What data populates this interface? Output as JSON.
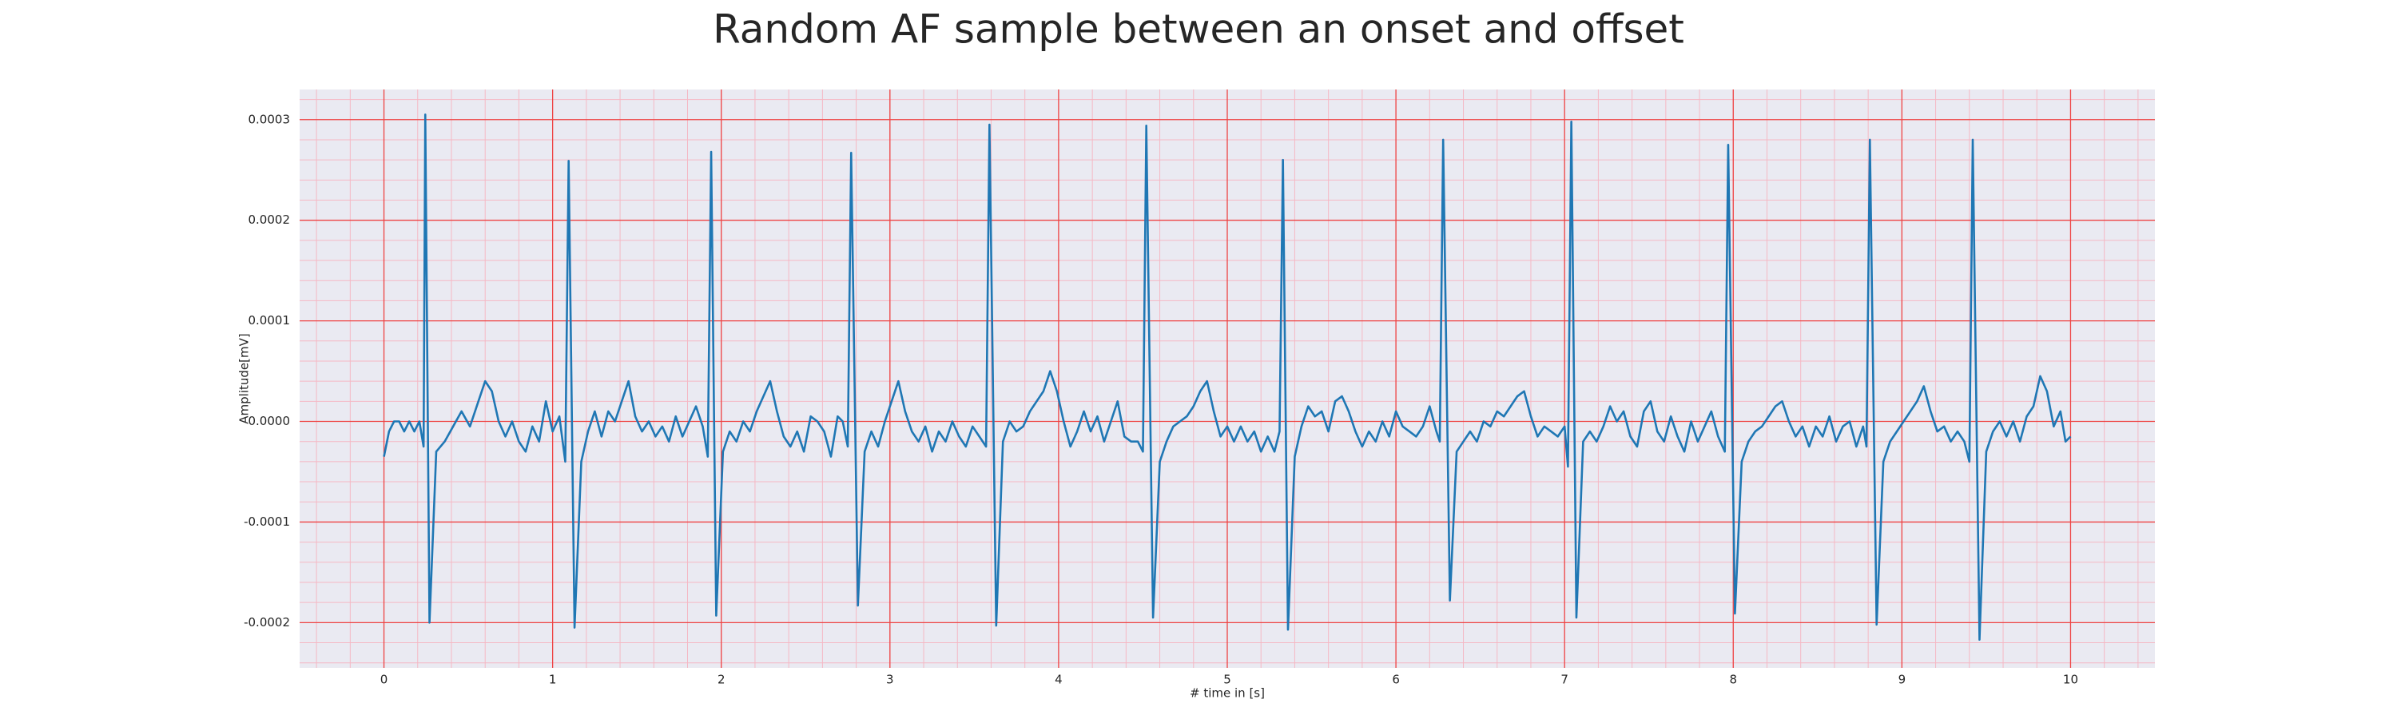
{
  "chart_data": {
    "type": "line",
    "title": "Random AF sample between an onset and offset",
    "xlabel": "# time in [s]",
    "ylabel": "Amplitude[mV]",
    "xlim": [
      -0.5,
      10.5
    ],
    "ylim": [
      -0.000245,
      0.00033
    ],
    "xticks": [
      0,
      1,
      2,
      3,
      4,
      5,
      6,
      7,
      8,
      9,
      10
    ],
    "yticks": [
      -0.0002,
      -0.0001,
      {
        "value": 0,
        "label": "0.0000"
      },
      0.0001,
      0.0002,
      0.0003
    ],
    "grid": true,
    "minor_grid": {
      "xstep": 0.2,
      "ystep": 2e-05
    },
    "x": [
      0,
      0.03,
      0.06,
      0.09,
      0.12,
      0.15,
      0.18,
      0.21,
      0.235,
      0.245,
      0.27,
      0.31,
      0.36,
      0.41,
      0.46,
      0.51,
      0.56,
      0.6,
      0.64,
      0.68,
      0.72,
      0.76,
      0.8,
      0.84,
      0.88,
      0.92,
      0.96,
      1.0,
      1.04,
      1.075,
      1.095,
      1.13,
      1.17,
      1.21,
      1.25,
      1.29,
      1.33,
      1.37,
      1.41,
      1.45,
      1.49,
      1.53,
      1.57,
      1.61,
      1.65,
      1.69,
      1.73,
      1.77,
      1.81,
      1.85,
      1.89,
      1.92,
      1.94,
      1.97,
      2.01,
      2.05,
      2.09,
      2.13,
      2.17,
      2.21,
      2.25,
      2.29,
      2.33,
      2.37,
      2.41,
      2.45,
      2.49,
      2.53,
      2.57,
      2.61,
      2.65,
      2.69,
      2.72,
      2.75,
      2.77,
      2.81,
      2.85,
      2.89,
      2.93,
      2.97,
      3.01,
      3.05,
      3.09,
      3.13,
      3.17,
      3.21,
      3.25,
      3.29,
      3.33,
      3.37,
      3.41,
      3.45,
      3.49,
      3.53,
      3.57,
      3.59,
      3.63,
      3.67,
      3.71,
      3.75,
      3.79,
      3.83,
      3.87,
      3.91,
      3.95,
      3.99,
      4.03,
      4.07,
      4.11,
      4.15,
      4.19,
      4.23,
      4.27,
      4.31,
      4.35,
      4.39,
      4.43,
      4.47,
      4.5,
      4.52,
      4.56,
      4.6,
      4.64,
      4.68,
      4.72,
      4.76,
      4.8,
      4.84,
      4.88,
      4.92,
      4.96,
      5.0,
      5.04,
      5.08,
      5.12,
      5.16,
      5.2,
      5.24,
      5.28,
      5.31,
      5.33,
      5.36,
      5.4,
      5.44,
      5.48,
      5.52,
      5.56,
      5.6,
      5.64,
      5.68,
      5.72,
      5.76,
      5.8,
      5.84,
      5.88,
      5.92,
      5.96,
      6.0,
      6.04,
      6.08,
      6.12,
      6.16,
      6.2,
      6.24,
      6.26,
      6.28,
      6.32,
      6.36,
      6.4,
      6.44,
      6.48,
      6.52,
      6.56,
      6.6,
      6.64,
      6.68,
      6.72,
      6.76,
      6.8,
      6.84,
      6.88,
      6.92,
      6.96,
      7.0,
      7.02,
      7.04,
      7.07,
      7.11,
      7.15,
      7.19,
      7.23,
      7.27,
      7.31,
      7.35,
      7.39,
      7.43,
      7.47,
      7.51,
      7.55,
      7.59,
      7.63,
      7.67,
      7.71,
      7.75,
      7.79,
      7.83,
      7.87,
      7.91,
      7.95,
      7.97,
      8.01,
      8.05,
      8.09,
      8.13,
      8.17,
      8.21,
      8.25,
      8.29,
      8.33,
      8.37,
      8.41,
      8.45,
      8.49,
      8.53,
      8.57,
      8.61,
      8.65,
      8.69,
      8.73,
      8.77,
      8.79,
      8.81,
      8.85,
      8.89,
      8.93,
      8.97,
      9.01,
      9.05,
      9.09,
      9.13,
      9.17,
      9.21,
      9.25,
      9.29,
      9.33,
      9.37,
      9.4,
      9.42,
      9.46,
      9.5,
      9.54,
      9.58,
      9.62,
      9.66,
      9.7,
      9.74,
      9.78,
      9.82,
      9.86,
      9.9,
      9.94,
      9.97,
      10.0
    ],
    "series": [
      {
        "color": "#1f77b4",
        "values": [
          -3.5e-05,
          -1e-05,
          0,
          0,
          -1e-05,
          0,
          -1e-05,
          0,
          -2.5e-05,
          0.000305,
          -0.0002,
          -3e-05,
          -2e-05,
          -5e-06,
          1e-05,
          -5e-06,
          2e-05,
          4e-05,
          3e-05,
          0,
          -1.5e-05,
          0,
          -2e-05,
          -3e-05,
          -5e-06,
          -2e-05,
          2e-05,
          -1e-05,
          5e-06,
          -4e-05,
          0.000259,
          -0.000205,
          -4e-05,
          -1e-05,
          1e-05,
          -1.5e-05,
          1e-05,
          0,
          2e-05,
          4e-05,
          5e-06,
          -1e-05,
          0,
          -1.5e-05,
          -5e-06,
          -2e-05,
          5e-06,
          -1.5e-05,
          0,
          1.5e-05,
          -5e-06,
          -3.5e-05,
          0.000268,
          -0.000193,
          -3e-05,
          -1e-05,
          -2e-05,
          0,
          -1e-05,
          1e-05,
          2.5e-05,
          4e-05,
          1e-05,
          -1.5e-05,
          -2.5e-05,
          -1e-05,
          -3e-05,
          5e-06,
          0,
          -1e-05,
          -3.5e-05,
          5e-06,
          0,
          -2.5e-05,
          0.000267,
          -0.000183,
          -3e-05,
          -1e-05,
          -2.5e-05,
          0,
          2e-05,
          4e-05,
          1e-05,
          -1e-05,
          -2e-05,
          -5e-06,
          -3e-05,
          -1e-05,
          -2e-05,
          0,
          -1.5e-05,
          -2.5e-05,
          -5e-06,
          -1.5e-05,
          -2.5e-05,
          0.000295,
          -0.000203,
          -2e-05,
          0,
          -1e-05,
          -5e-06,
          1e-05,
          2e-05,
          3e-05,
          5e-05,
          3e-05,
          0,
          -2.5e-05,
          -1e-05,
          1e-05,
          -1e-05,
          5e-06,
          -2e-05,
          0,
          2e-05,
          -1.5e-05,
          -2e-05,
          -2e-05,
          -3e-05,
          0.000294,
          -0.000195,
          -4e-05,
          -2e-05,
          -5e-06,
          0,
          5e-06,
          1.5e-05,
          3e-05,
          4e-05,
          1e-05,
          -1.5e-05,
          -5e-06,
          -2e-05,
          -5e-06,
          -2e-05,
          -1e-05,
          -3e-05,
          -1.5e-05,
          -3e-05,
          -1e-05,
          0.00026,
          -0.000207,
          -3.5e-05,
          -5e-06,
          1.5e-05,
          5e-06,
          1e-05,
          -1e-05,
          2e-05,
          2.5e-05,
          1e-05,
          -1e-05,
          -2.5e-05,
          -1e-05,
          -2e-05,
          0,
          -1.5e-05,
          1e-05,
          -5e-06,
          -1e-05,
          -1.5e-05,
          -5e-06,
          1.5e-05,
          -1e-05,
          -2e-05,
          0.00028,
          -0.000178,
          -3e-05,
          -2e-05,
          -1e-05,
          -2e-05,
          0,
          -5e-06,
          1e-05,
          5e-06,
          1.5e-05,
          2.5e-05,
          3e-05,
          5e-06,
          -1.5e-05,
          -5e-06,
          -1e-05,
          -1.5e-05,
          -5e-06,
          -4.5e-05,
          0.000298,
          -0.000195,
          -2e-05,
          -1e-05,
          -2e-05,
          -5e-06,
          1.5e-05,
          0,
          1e-05,
          -1.5e-05,
          -2.5e-05,
          1e-05,
          2e-05,
          -1e-05,
          -2e-05,
          5e-06,
          -1.5e-05,
          -3e-05,
          0,
          -2e-05,
          -5e-06,
          1e-05,
          -1.5e-05,
          -3e-05,
          0.000275,
          -0.000191,
          -4e-05,
          -2e-05,
          -1e-05,
          -5e-06,
          5e-06,
          1.5e-05,
          2e-05,
          0,
          -1.5e-05,
          -5e-06,
          -2.5e-05,
          -5e-06,
          -1.5e-05,
          5e-06,
          -2e-05,
          -5e-06,
          0,
          -2.5e-05,
          -5e-06,
          -2.5e-05,
          0.00028,
          -0.000202,
          -4e-05,
          -2e-05,
          -1e-05,
          0,
          1e-05,
          2e-05,
          3.5e-05,
          1e-05,
          -1e-05,
          -5e-06,
          -2e-05,
          -1e-05,
          -2e-05,
          -4e-05,
          0.00028,
          -0.000217,
          -3e-05,
          -1e-05,
          0,
          -1.5e-05,
          0,
          -2e-05,
          5e-06,
          1.5e-05,
          4.5e-05,
          3e-05,
          -5e-06,
          1e-05,
          -2e-05,
          -1.5e-05
        ]
      }
    ]
  }
}
